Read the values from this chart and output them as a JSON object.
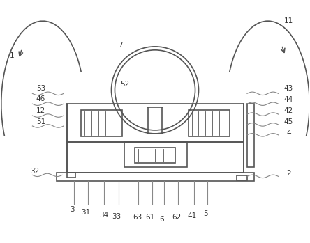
{
  "title": "",
  "background_color": "#ffffff",
  "line_color": "#555555",
  "label_color": "#333333",
  "fig_width": 4.44,
  "fig_height": 3.49,
  "dpi": 100
}
